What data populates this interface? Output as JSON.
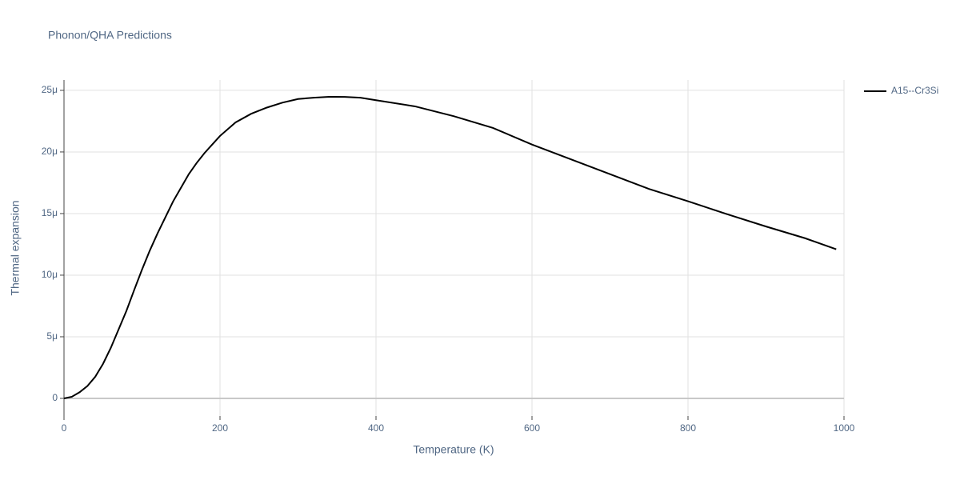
{
  "chart_data": {
    "type": "line",
    "title": "Phonon/QHA Predictions",
    "x_label": "Temperature (K)",
    "y_label": "Thermal expansion",
    "x": [
      0,
      10,
      20,
      30,
      40,
      50,
      60,
      70,
      80,
      90,
      100,
      110,
      120,
      130,
      140,
      150,
      160,
      170,
      180,
      190,
      200,
      220,
      240,
      260,
      280,
      300,
      320,
      340,
      360,
      380,
      400,
      450,
      500,
      550,
      600,
      650,
      700,
      750,
      800,
      850,
      900,
      950,
      990
    ],
    "series": [
      {
        "name": "A15--Cr3Si",
        "color": "#000000",
        "values": [
          0,
          1.3e-07,
          5e-07,
          1e-06,
          1.75e-06,
          2.8e-06,
          4.1e-06,
          5.6e-06,
          7.1e-06,
          8.8e-06,
          1.045e-05,
          1.2e-05,
          1.34e-05,
          1.47e-05,
          1.6e-05,
          1.71e-05,
          1.82e-05,
          1.91e-05,
          1.99e-05,
          2.06e-05,
          2.13e-05,
          2.24e-05,
          2.31e-05,
          2.36e-05,
          2.4e-05,
          2.43e-05,
          2.44e-05,
          2.448e-05,
          2.447e-05,
          2.44e-05,
          2.42e-05,
          2.37e-05,
          2.29e-05,
          2.195e-05,
          2.06e-05,
          1.94e-05,
          1.82e-05,
          1.7e-05,
          1.6e-05,
          1.495e-05,
          1.395e-05,
          1.3e-05,
          1.21e-05
        ]
      }
    ],
    "xlim": [
      0,
      1000
    ],
    "xticks": [
      0,
      200,
      400,
      600,
      800,
      1000
    ],
    "ylim": [
      -1.43e-06,
      2.584e-05
    ],
    "yticks": [
      0,
      {
        "value": 5e-06,
        "label": "5μ"
      },
      {
        "value": 1e-05,
        "label": "10μ"
      },
      {
        "value": 1.5e-05,
        "label": "15μ"
      },
      {
        "value": 2e-05,
        "label": "20μ"
      },
      {
        "value": 2.5e-05,
        "label": "25μ"
      }
    ],
    "grid": true,
    "legend": "top-right"
  }
}
